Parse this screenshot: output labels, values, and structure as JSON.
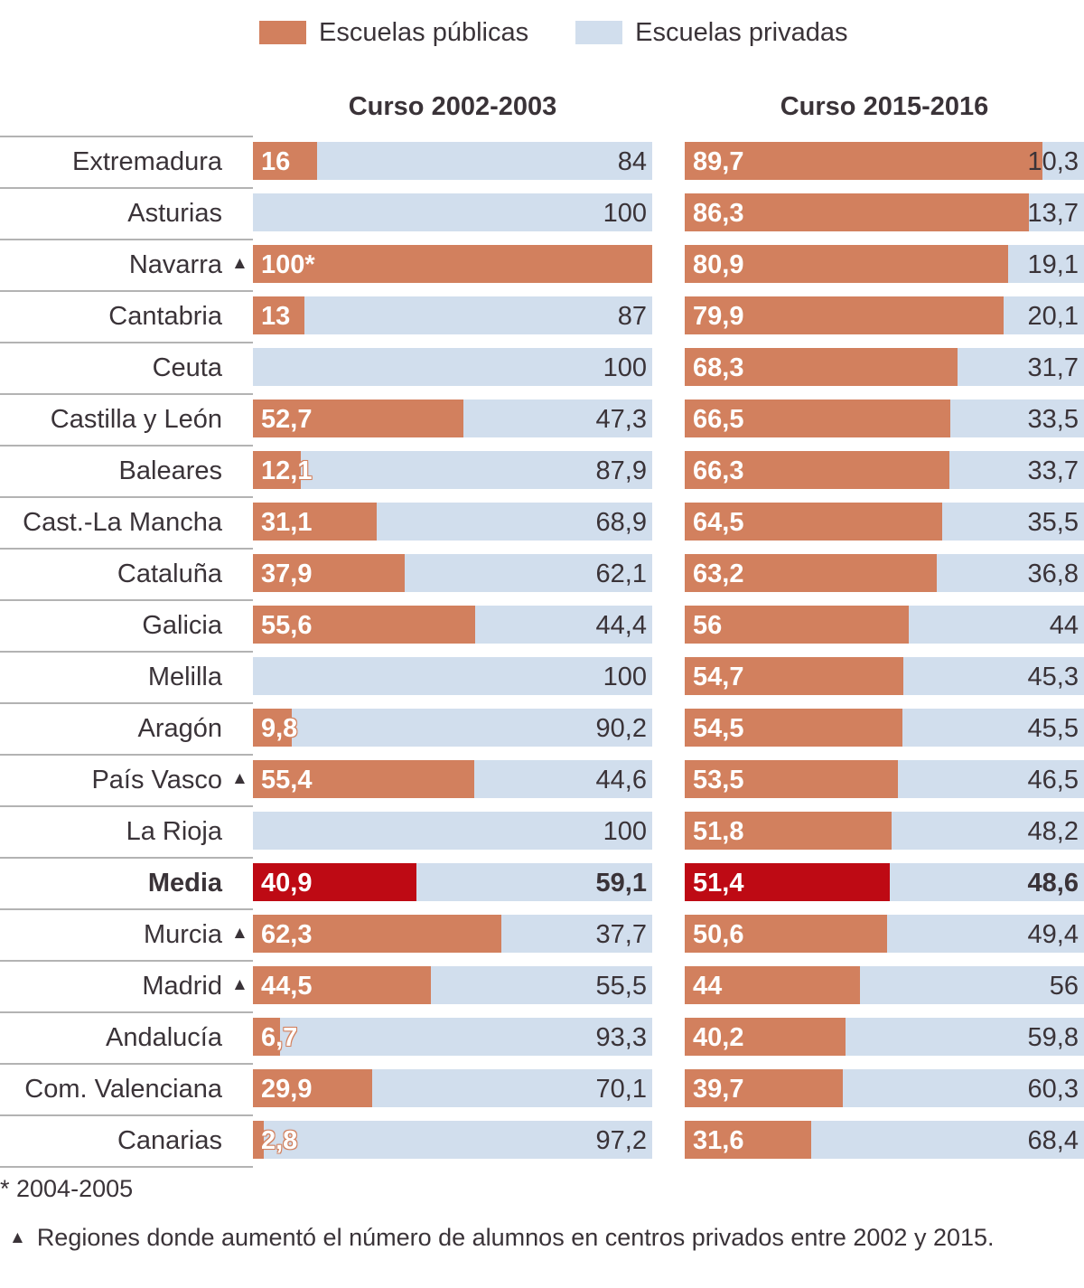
{
  "legend": {
    "public_label": "Escuelas públicas",
    "private_label": "Escuelas privadas",
    "public_color": "#d2805e",
    "private_color": "#d1deed",
    "media_color": "#be0a14"
  },
  "footnotes": {
    "asterisk": "* 2004-2005",
    "triangle_symbol": "▲",
    "triangle": "Regiones donde aumentó el número de alumnos en centros privados entre 2002 y 2015."
  },
  "chart_data": {
    "type": "bar",
    "subtype": "stacked-horizontal-100",
    "title": "",
    "xlabel": "",
    "ylabel": "",
    "xlim": [
      0,
      100
    ],
    "grid": false,
    "legend_position": "top",
    "series": [
      {
        "name": "Escuelas públicas"
      },
      {
        "name": "Escuelas privadas"
      }
    ],
    "panels": [
      {
        "title": "Curso 2002-2003"
      },
      {
        "title": "Curso 2015-2016"
      }
    ],
    "rows": [
      {
        "region": "Extremadura",
        "marker": false,
        "bold": false,
        "y2002_public": 16,
        "y2002_public_label": "16",
        "y2002_private": 84,
        "y2002_private_label": "84",
        "y2015_public": 89.7,
        "y2015_public_label": "89,7",
        "y2015_private": 10.3,
        "y2015_private_label": "10,3"
      },
      {
        "region": "Asturias",
        "marker": false,
        "bold": false,
        "y2002_public": 0,
        "y2002_public_label": "",
        "y2002_private": 100,
        "y2002_private_label": "100",
        "y2015_public": 86.3,
        "y2015_public_label": "86,3",
        "y2015_private": 13.7,
        "y2015_private_label": "13,7"
      },
      {
        "region": "Navarra",
        "marker": true,
        "bold": false,
        "y2002_public": 100,
        "y2002_public_label": "100*",
        "y2002_private": 0,
        "y2002_private_label": "",
        "y2015_public": 80.9,
        "y2015_public_label": "80,9",
        "y2015_private": 19.1,
        "y2015_private_label": "19,1"
      },
      {
        "region": "Cantabria",
        "marker": false,
        "bold": false,
        "y2002_public": 13,
        "y2002_public_label": "13",
        "y2002_private": 87,
        "y2002_private_label": "87",
        "y2015_public": 79.9,
        "y2015_public_label": "79,9",
        "y2015_private": 20.1,
        "y2015_private_label": "20,1"
      },
      {
        "region": "Ceuta",
        "marker": false,
        "bold": false,
        "y2002_public": 0,
        "y2002_public_label": "",
        "y2002_private": 100,
        "y2002_private_label": "100",
        "y2015_public": 68.3,
        "y2015_public_label": "68,3",
        "y2015_private": 31.7,
        "y2015_private_label": "31,7"
      },
      {
        "region": "Castilla y León",
        "marker": false,
        "bold": false,
        "y2002_public": 52.7,
        "y2002_public_label": "52,7",
        "y2002_private": 47.3,
        "y2002_private_label": "47,3",
        "y2015_public": 66.5,
        "y2015_public_label": "66,5",
        "y2015_private": 33.5,
        "y2015_private_label": "33,5"
      },
      {
        "region": "Baleares",
        "marker": false,
        "bold": false,
        "y2002_public": 12.1,
        "y2002_public_label": "12,1",
        "y2002_private": 87.9,
        "y2002_private_label": "87,9",
        "y2015_public": 66.3,
        "y2015_public_label": "66,3",
        "y2015_private": 33.7,
        "y2015_private_label": "33,7"
      },
      {
        "region": "Cast.-La Mancha",
        "marker": false,
        "bold": false,
        "y2002_public": 31.1,
        "y2002_public_label": "31,1",
        "y2002_private": 68.9,
        "y2002_private_label": "68,9",
        "y2015_public": 64.5,
        "y2015_public_label": "64,5",
        "y2015_private": 35.5,
        "y2015_private_label": "35,5"
      },
      {
        "region": "Cataluña",
        "marker": false,
        "bold": false,
        "y2002_public": 37.9,
        "y2002_public_label": "37,9",
        "y2002_private": 62.1,
        "y2002_private_label": "62,1",
        "y2015_public": 63.2,
        "y2015_public_label": "63,2",
        "y2015_private": 36.8,
        "y2015_private_label": "36,8"
      },
      {
        "region": "Galicia",
        "marker": false,
        "bold": false,
        "y2002_public": 55.6,
        "y2002_public_label": "55,6",
        "y2002_private": 44.4,
        "y2002_private_label": "44,4",
        "y2015_public": 56,
        "y2015_public_label": "56",
        "y2015_private": 44,
        "y2015_private_label": "44"
      },
      {
        "region": "Melilla",
        "marker": false,
        "bold": false,
        "y2002_public": 0,
        "y2002_public_label": "",
        "y2002_private": 100,
        "y2002_private_label": "100",
        "y2015_public": 54.7,
        "y2015_public_label": "54,7",
        "y2015_private": 45.3,
        "y2015_private_label": "45,3"
      },
      {
        "region": "Aragón",
        "marker": false,
        "bold": false,
        "y2002_public": 9.8,
        "y2002_public_label": "9,8",
        "y2002_private": 90.2,
        "y2002_private_label": "90,2",
        "y2015_public": 54.5,
        "y2015_public_label": "54,5",
        "y2015_private": 45.5,
        "y2015_private_label": "45,5"
      },
      {
        "region": "País Vasco",
        "marker": true,
        "bold": false,
        "y2002_public": 55.4,
        "y2002_public_label": "55,4",
        "y2002_private": 44.6,
        "y2002_private_label": "44,6",
        "y2015_public": 53.5,
        "y2015_public_label": "53,5",
        "y2015_private": 46.5,
        "y2015_private_label": "46,5"
      },
      {
        "region": "La Rioja",
        "marker": false,
        "bold": false,
        "y2002_public": 0,
        "y2002_public_label": "",
        "y2002_private": 100,
        "y2002_private_label": "100",
        "y2015_public": 51.8,
        "y2015_public_label": "51,8",
        "y2015_private": 48.2,
        "y2015_private_label": "48,2"
      },
      {
        "region": "Media",
        "marker": false,
        "bold": true,
        "y2002_public": 40.9,
        "y2002_public_label": "40,9",
        "y2002_private": 59.1,
        "y2002_private_label": "59,1",
        "y2015_public": 51.4,
        "y2015_public_label": "51,4",
        "y2015_private": 48.6,
        "y2015_private_label": "48,6"
      },
      {
        "region": "Murcia",
        "marker": true,
        "bold": false,
        "y2002_public": 62.3,
        "y2002_public_label": "62,3",
        "y2002_private": 37.7,
        "y2002_private_label": "37,7",
        "y2015_public": 50.6,
        "y2015_public_label": "50,6",
        "y2015_private": 49.4,
        "y2015_private_label": "49,4"
      },
      {
        "region": "Madrid",
        "marker": true,
        "bold": false,
        "y2002_public": 44.5,
        "y2002_public_label": "44,5",
        "y2002_private": 55.5,
        "y2002_private_label": "55,5",
        "y2015_public": 44,
        "y2015_public_label": "44",
        "y2015_private": 56,
        "y2015_private_label": "56"
      },
      {
        "region": "Andalucía",
        "marker": false,
        "bold": false,
        "y2002_public": 6.7,
        "y2002_public_label": "6,7",
        "y2002_private": 93.3,
        "y2002_private_label": "93,3",
        "y2015_public": 40.2,
        "y2015_public_label": "40,2",
        "y2015_private": 59.8,
        "y2015_private_label": "59,8"
      },
      {
        "region": "Com. Valenciana",
        "marker": false,
        "bold": false,
        "y2002_public": 29.9,
        "y2002_public_label": "29,9",
        "y2002_private": 70.1,
        "y2002_private_label": "70,1",
        "y2015_public": 39.7,
        "y2015_public_label": "39,7",
        "y2015_private": 60.3,
        "y2015_private_label": "60,3"
      },
      {
        "region": "Canarias",
        "marker": false,
        "bold": false,
        "y2002_public": 2.8,
        "y2002_public_label": "2,8",
        "y2002_private": 97.2,
        "y2002_private_label": "97,2",
        "y2015_public": 31.6,
        "y2015_public_label": "31,6",
        "y2015_private": 68.4,
        "y2015_private_label": "68,4"
      }
    ]
  }
}
